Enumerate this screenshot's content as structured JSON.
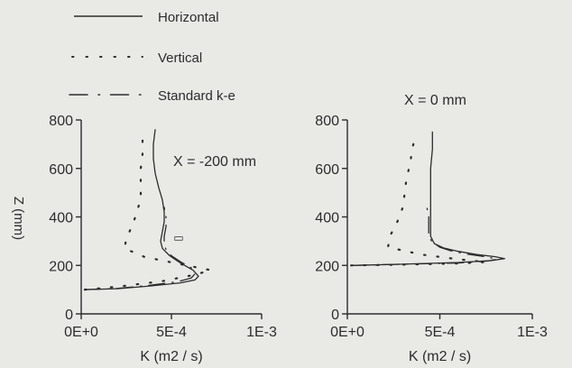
{
  "legend": {
    "items": [
      {
        "label": "Horizontal",
        "style": "solid"
      },
      {
        "label": "Vertical",
        "style": "dotted"
      },
      {
        "label": "Standard k-e",
        "style": "dashdot"
      }
    ]
  },
  "y_axis_title": "Z (mm)",
  "colors": {
    "background": "#e9e9e6",
    "ink": "#2c2c2c"
  },
  "chart_data": [
    {
      "type": "line",
      "title": "X = -200 mm",
      "xlabel": "K (m2 / s)",
      "ylabel": "Z (mm)",
      "xlim": [
        0,
        0.001
      ],
      "ylim": [
        0,
        800
      ],
      "xticks": [
        {
          "v": 0,
          "label": "0E+0"
        },
        {
          "v": 0.0005,
          "label": "5E-4"
        },
        {
          "v": 0.001,
          "label": "1E-3"
        }
      ],
      "yticks": [
        {
          "v": 0,
          "label": "0"
        },
        {
          "v": 200,
          "label": "200"
        },
        {
          "v": 400,
          "label": "400"
        },
        {
          "v": 600,
          "label": "600"
        },
        {
          "v": 800,
          "label": "800"
        }
      ],
      "series": [
        {
          "name": "Horizontal",
          "style": "solid",
          "points": [
            [
              2e-05,
              100
            ],
            [
              0.0002,
              104
            ],
            [
              0.00038,
              115
            ],
            [
              0.00055,
              128
            ],
            [
              0.00063,
              140
            ],
            [
              0.00065,
              155
            ],
            [
              0.00062,
              180
            ],
            [
              0.00055,
              210
            ],
            [
              0.00049,
              240
            ],
            [
              0.00045,
              270
            ],
            [
              0.00044,
              300
            ],
            [
              0.00045,
              340
            ],
            [
              0.00046,
              380
            ],
            [
              0.00046,
              420
            ],
            [
              0.00045,
              470
            ],
            [
              0.00043,
              520
            ],
            [
              0.00041,
              580
            ],
            [
              0.0004,
              640
            ],
            [
              0.0004,
              700
            ],
            [
              0.00041,
              760
            ]
          ]
        },
        {
          "name": "Vertical",
          "style": "dotted",
          "points": [
            [
              2e-05,
              100
            ],
            [
              0.0002,
              112
            ],
            [
              0.00045,
              135
            ],
            [
              0.00062,
              160
            ],
            [
              0.00072,
              180
            ],
            [
              0.00055,
              205
            ],
            [
              0.00035,
              235
            ],
            [
              0.00024,
              270
            ],
            [
              0.00025,
              310
            ],
            [
              0.00028,
              360
            ],
            [
              0.00031,
              420
            ],
            [
              0.00033,
              480
            ],
            [
              0.00033,
              540
            ],
            [
              0.00033,
              600
            ],
            [
              0.00034,
              660
            ],
            [
              0.00034,
              720
            ],
            [
              0.00035,
              760
            ]
          ]
        },
        {
          "name": "Standard k-e",
          "style": "dashdot",
          "points": [
            [
              2e-05,
              100
            ],
            [
              0.0002,
              105
            ],
            [
              0.00038,
              118
            ],
            [
              0.00053,
              132
            ],
            [
              0.00061,
              148
            ],
            [
              0.00063,
              165
            ],
            [
              0.00061,
              190
            ],
            [
              0.00055,
              215
            ],
            [
              0.0005,
              240
            ],
            [
              0.00047,
              265
            ],
            [
              0.00046,
              290
            ],
            [
              0.00046,
              320
            ],
            [
              0.00047,
              360
            ],
            [
              0.00047,
              400
            ],
            [
              0.00046,
              440
            ]
          ]
        }
      ],
      "annotations": [
        {
          "text": "▭",
          "x": 0.00054,
          "y": 300
        }
      ]
    },
    {
      "type": "line",
      "title": "X = 0 mm",
      "xlabel": "K (m2 / s)",
      "ylabel": "",
      "xlim": [
        0,
        0.001
      ],
      "ylim": [
        0,
        800
      ],
      "xticks": [
        {
          "v": 0,
          "label": "0E+0"
        },
        {
          "v": 0.0005,
          "label": "5E-4"
        },
        {
          "v": 0.001,
          "label": "1E-3"
        }
      ],
      "yticks": [
        {
          "v": 0,
          "label": "0"
        },
        {
          "v": 200,
          "label": "200"
        },
        {
          "v": 400,
          "label": "400"
        },
        {
          "v": 600,
          "label": "600"
        },
        {
          "v": 800,
          "label": "800"
        }
      ],
      "series": [
        {
          "name": "Horizontal",
          "style": "solid",
          "points": [
            [
              2e-05,
              200
            ],
            [
              0.0003,
              205
            ],
            [
              0.0006,
              212
            ],
            [
              0.00078,
              220
            ],
            [
              0.00085,
              228
            ],
            [
              0.0008,
              236
            ],
            [
              0.0007,
              245
            ],
            [
              0.0006,
              258
            ],
            [
              0.00052,
              272
            ],
            [
              0.00047,
              290
            ],
            [
              0.00045,
              320
            ],
            [
              0.00045,
              360
            ],
            [
              0.00045,
              400
            ],
            [
              0.00045,
              450
            ],
            [
              0.00045,
              520
            ],
            [
              0.00045,
              600
            ],
            [
              0.00046,
              680
            ],
            [
              0.00046,
              750
            ]
          ]
        },
        {
          "name": "Vertical",
          "style": "dotted",
          "points": [
            [
              2e-05,
              200
            ],
            [
              0.0003,
              203
            ],
            [
              0.0006,
              208
            ],
            [
              0.00075,
              214
            ],
            [
              0.0006,
              225
            ],
            [
              0.0004,
              245
            ],
            [
              0.00022,
              275
            ],
            [
              0.00023,
              320
            ],
            [
              0.00027,
              380
            ],
            [
              0.0003,
              440
            ],
            [
              0.00031,
              500
            ],
            [
              0.00032,
              560
            ],
            [
              0.00034,
              620
            ],
            [
              0.00035,
              680
            ],
            [
              0.00037,
              740
            ]
          ]
        },
        {
          "name": "Standard k-e",
          "style": "dashdot",
          "points": [
            [
              2e-05,
              200
            ],
            [
              0.0003,
              205
            ],
            [
              0.0006,
              210
            ],
            [
              0.00076,
              218
            ],
            [
              0.00081,
              226
            ],
            [
              0.00075,
              235
            ],
            [
              0.00065,
              246
            ],
            [
              0.00056,
              260
            ],
            [
              0.0005,
              275
            ],
            [
              0.00046,
              295
            ],
            [
              0.00044,
              320
            ],
            [
              0.00044,
              360
            ],
            [
              0.00044,
              400
            ],
            [
              0.00043,
              440
            ]
          ]
        }
      ]
    }
  ]
}
